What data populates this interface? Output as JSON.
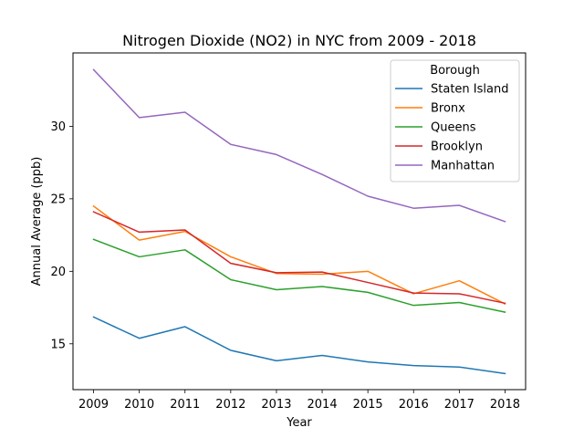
{
  "chart_data": {
    "type": "line",
    "title": "Nitrogen Dioxide (NO2) in NYC from 2009 - 2018",
    "xlabel": "Year",
    "ylabel": "Annual Average (ppb)",
    "x": [
      2009,
      2010,
      2011,
      2012,
      2013,
      2014,
      2015,
      2016,
      2017,
      2018
    ],
    "x_tick_labels": [
      "2009",
      "2010",
      "2011",
      "2012",
      "2013",
      "2014",
      "2015",
      "2016",
      "2017",
      "2018"
    ],
    "y_ticks": [
      15,
      20,
      25,
      30
    ],
    "y_tick_labels": [
      "15",
      "20",
      "25",
      "30"
    ],
    "xlim": [
      2008.55,
      2018.45
    ],
    "ylim": [
      11.84,
      35.06
    ],
    "grid": false,
    "legend": {
      "title": "Borough",
      "placement": "upper right"
    },
    "series": [
      {
        "name": "Staten Island",
        "color": "#1f77b4",
        "values": [
          16.85,
          15.38,
          16.18,
          14.55,
          13.83,
          14.2,
          13.75,
          13.5,
          13.4,
          12.95
        ]
      },
      {
        "name": "Bronx",
        "color": "#ff7f0e",
        "values": [
          24.5,
          22.15,
          22.75,
          21.0,
          19.85,
          19.8,
          20.0,
          18.45,
          19.35,
          17.75
        ]
      },
      {
        "name": "Queens",
        "color": "#2ca02c",
        "values": [
          22.2,
          21.0,
          21.48,
          19.42,
          18.73,
          18.95,
          18.55,
          17.65,
          17.85,
          17.18
        ]
      },
      {
        "name": "Brooklyn",
        "color": "#d62728",
        "values": [
          24.1,
          22.7,
          22.85,
          20.55,
          19.9,
          19.95,
          19.23,
          18.5,
          18.45,
          17.8
        ]
      },
      {
        "name": "Manhattan",
        "color": "#9467bd",
        "values": [
          33.9,
          30.6,
          30.97,
          28.75,
          28.05,
          26.68,
          25.18,
          24.35,
          24.55,
          23.43
        ]
      }
    ]
  }
}
